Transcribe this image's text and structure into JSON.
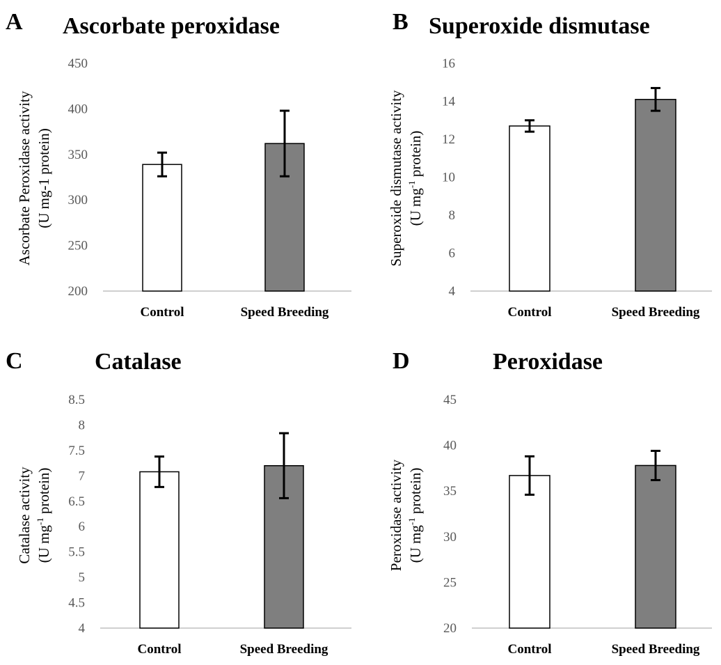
{
  "figure": {
    "panels": [
      {
        "id": "A",
        "letter": "A",
        "title": "Ascorbate peroxidase",
        "ylabel_line1": "Ascorbate Peroxidase activity",
        "ylabel_line2": [
          "(U mg-1 protein)"
        ]
      },
      {
        "id": "B",
        "letter": "B",
        "title": "Superoxide dismutase",
        "ylabel_line1": "Superoxide dismutase activity",
        "ylabel_line2": [
          "(U mg",
          "-1",
          " protein)"
        ]
      },
      {
        "id": "C",
        "letter": "C",
        "title": "Catalase",
        "ylabel_line1": "Catalase activity",
        "ylabel_line2": [
          "(U mg",
          "-1",
          " protein)"
        ]
      },
      {
        "id": "D",
        "letter": "D",
        "title": "Peroxidase",
        "ylabel_line1": "Peroxidase activity",
        "ylabel_line2": [
          "(U mg",
          "-1",
          " protein)"
        ]
      }
    ]
  },
  "colors": {
    "control_fill": "#ffffff",
    "speed_fill": "#7f7f7f",
    "bar_stroke": "#000000",
    "axis": "#bfbfbf",
    "tick_text": "#595959"
  },
  "chart_data": [
    {
      "type": "bar",
      "title": "Ascorbate peroxidase",
      "ylabel": "Ascorbate Peroxidase activity (U mg-1 protein)",
      "categories": [
        "Control",
        "Speed Breeding"
      ],
      "values": [
        339,
        362
      ],
      "errors": [
        13,
        36
      ],
      "ylim": [
        200,
        450
      ],
      "yticks": [
        "200",
        "250",
        "300",
        "350",
        "400",
        "450"
      ],
      "ytick_values": [
        200,
        250,
        300,
        350,
        400,
        450
      ]
    },
    {
      "type": "bar",
      "title": "Superoxide dismutase",
      "ylabel": "Superoxide dismutase activity (U mg-1 protein)",
      "categories": [
        "Control",
        "Speed Breeding"
      ],
      "values": [
        12.7,
        14.1
      ],
      "errors": [
        0.3,
        0.6
      ],
      "ylim": [
        4,
        16
      ],
      "yticks": [
        "4",
        "6",
        "8",
        "10",
        "12",
        "14",
        "16"
      ],
      "ytick_values": [
        4,
        6,
        8,
        10,
        12,
        14,
        16
      ]
    },
    {
      "type": "bar",
      "title": "Catalase",
      "ylabel": "Catalase activity (U mg-1 protein)",
      "categories": [
        "Control",
        "Speed Breeding"
      ],
      "values": [
        7.08,
        7.2
      ],
      "errors": [
        0.3,
        0.64
      ],
      "ylim": [
        4,
        8.5
      ],
      "yticks": [
        "4",
        "4.5",
        "5",
        "5.5",
        "6",
        "6.5",
        "7",
        "7.5",
        "8",
        "8.5"
      ],
      "ytick_values": [
        4,
        4.5,
        5,
        5.5,
        6,
        6.5,
        7,
        7.5,
        8,
        8.5
      ]
    },
    {
      "type": "bar",
      "title": "Peroxidase",
      "ylabel": "Peroxidase activity (U mg-1 protein)",
      "categories": [
        "Control",
        "Speed Breeding"
      ],
      "values": [
        36.7,
        37.8
      ],
      "errors": [
        2.1,
        1.6
      ],
      "ylim": [
        20,
        45
      ],
      "yticks": [
        "20",
        "25",
        "30",
        "35",
        "40",
        "45"
      ],
      "ytick_values": [
        20,
        25,
        30,
        35,
        40,
        45
      ]
    }
  ]
}
